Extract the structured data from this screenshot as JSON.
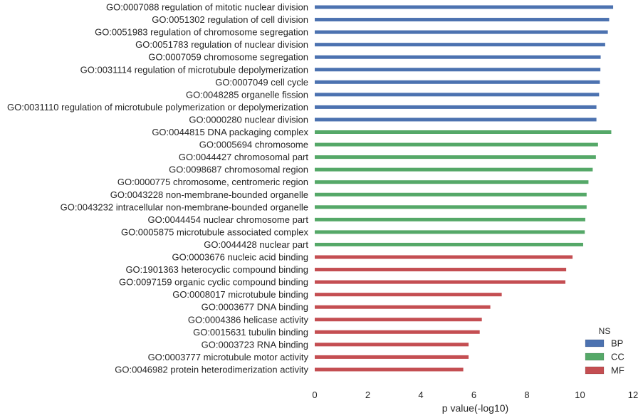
{
  "chart_data": {
    "type": "bar",
    "orientation": "horizontal",
    "xlabel": "p value(-log10)",
    "xlim": [
      0,
      12
    ],
    "xticks": [
      0,
      2,
      4,
      6,
      8,
      10,
      12
    ],
    "grid": false,
    "legend": {
      "title": "NS",
      "placement": "bottom-right",
      "entries": [
        {
          "name": "BP",
          "color": "#4c72b0"
        },
        {
          "name": "CC",
          "color": "#55a868"
        },
        {
          "name": "MF",
          "color": "#c44e52"
        }
      ]
    },
    "categories": [
      "GO:0007088 regulation of mitotic nuclear division",
      "GO:0051302 regulation of cell division",
      "GO:0051983 regulation of chromosome segregation",
      "GO:0051783 regulation of nuclear division",
      "GO:0007059 chromosome segregation",
      "GO:0031114 regulation of microtubule depolymerization",
      "GO:0007049 cell cycle",
      "GO:0048285 organelle fission",
      "GO:0031110 regulation of microtubule polymerization or depolymerization",
      "GO:0000280 nuclear division",
      "GO:0044815 DNA packaging complex",
      "GO:0005694 chromosome",
      "GO:0044427 chromosomal part",
      "GO:0098687 chromosomal region",
      "GO:0000775 chromosome, centromeric region",
      "GO:0043228 non-membrane-bounded organelle",
      "GO:0043232 intracellular non-membrane-bounded organelle",
      "GO:0044454 nuclear chromosome part",
      "GO:0005875 microtubule associated complex",
      "GO:0044428 nuclear part",
      "GO:0003676 nucleic acid binding",
      "GO:1901363 heterocyclic compound binding",
      "GO:0097159 organic cyclic compound binding",
      "GO:0008017 microtubule binding",
      "GO:0003677 DNA binding",
      "GO:0004386 helicase activity",
      "GO:0015631 tubulin binding",
      "GO:0003723 RNA binding",
      "GO:0003777 microtubule motor activity",
      "GO:0046982 protein heterodimerization activity"
    ],
    "groups": [
      "BP",
      "BP",
      "BP",
      "BP",
      "BP",
      "BP",
      "BP",
      "BP",
      "BP",
      "BP",
      "CC",
      "CC",
      "CC",
      "CC",
      "CC",
      "CC",
      "CC",
      "CC",
      "CC",
      "CC",
      "MF",
      "MF",
      "MF",
      "MF",
      "MF",
      "MF",
      "MF",
      "MF",
      "MF",
      "MF"
    ],
    "values": [
      11.25,
      11.1,
      11.05,
      10.95,
      10.78,
      10.77,
      10.75,
      10.72,
      10.62,
      10.62,
      11.18,
      10.68,
      10.6,
      10.48,
      10.32,
      10.25,
      10.25,
      10.2,
      10.18,
      10.12,
      9.72,
      9.48,
      9.45,
      7.05,
      6.62,
      6.3,
      6.22,
      5.8,
      5.8,
      5.6
    ]
  }
}
